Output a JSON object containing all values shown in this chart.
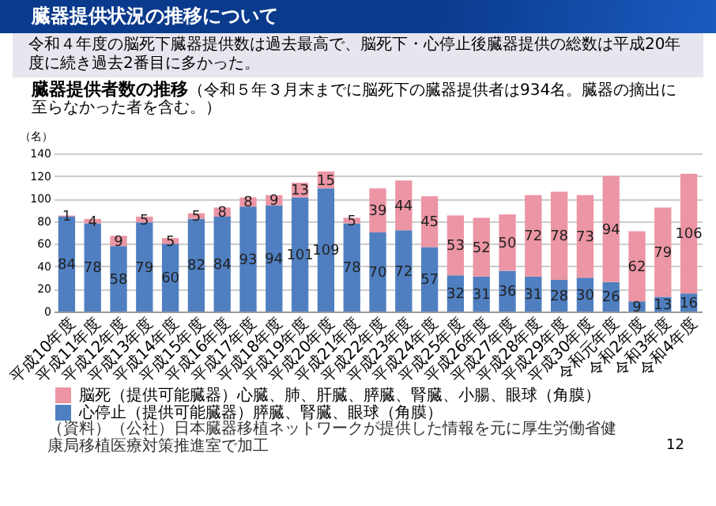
{
  "chart_data": {
    "type": "bar",
    "title": "臓器提供状況の推移について",
    "subtitle": "令和４年度の脳死下臓器提供数は過去最高で、脳死下・心停止後臓器提供の総数は平成20年度に続き過去2番目に多かった。",
    "annotations": [
      "臓器提供者数の推移",
      "（令和５年３月末までに脳死下の臓器提供者は934名。臓器の摘出に至らなかった者を含む。）",
      "（資料）（公社）日本臓器移植ネットワークが提供した情報を元に厚生労働省健康局移植医療対策推進室で加工",
      "12"
    ],
    "ylabel": "（名）",
    "categories": [
      "平成10年度",
      "平成11年度",
      "平成12年度",
      "平成13年度",
      "平成14年度",
      "平成15年度",
      "平成16年度",
      "平成17年度",
      "平成18年度",
      "平成19年度",
      "平成20年度",
      "平成21年度",
      "平成22年度",
      "平成23年度",
      "平成24年度",
      "平成25年度",
      "平成26年度",
      "平成27年度",
      "平成28年度",
      "平成29年度",
      "平成30年度",
      "令和元年度",
      "令和2年度",
      "令和3年度",
      "令和4年度"
    ],
    "stacked": true,
    "series": [
      {
        "name": "心停止（提供可能臓器）膵臓、腎臓、眼球（角膜）",
        "color": "#4f7fc0",
        "values": [
          84,
          78,
          58,
          79,
          60,
          82,
          84,
          93,
          94,
          101,
          109,
          78,
          70,
          72,
          57,
          32,
          31,
          36,
          31,
          28,
          30,
          26,
          9,
          13,
          16
        ]
      },
      {
        "name": "脳死（提供可能臓器）心臓、肺、肝臓、膵臓、腎臓、小腸、眼球（角膜）",
        "color": "#ec95a4",
        "values": [
          1,
          4,
          9,
          5,
          5,
          5,
          8,
          8,
          9,
          13,
          15,
          5,
          39,
          44,
          45,
          53,
          52,
          50,
          72,
          78,
          73,
          94,
          62,
          79,
          106
        ]
      }
    ],
    "ylim": [
      0,
      140
    ],
    "yticks": [
      0,
      20,
      40,
      60,
      80,
      100,
      120,
      140
    ],
    "grid": "y",
    "legend": "bottom",
    "data_labels": true
  }
}
